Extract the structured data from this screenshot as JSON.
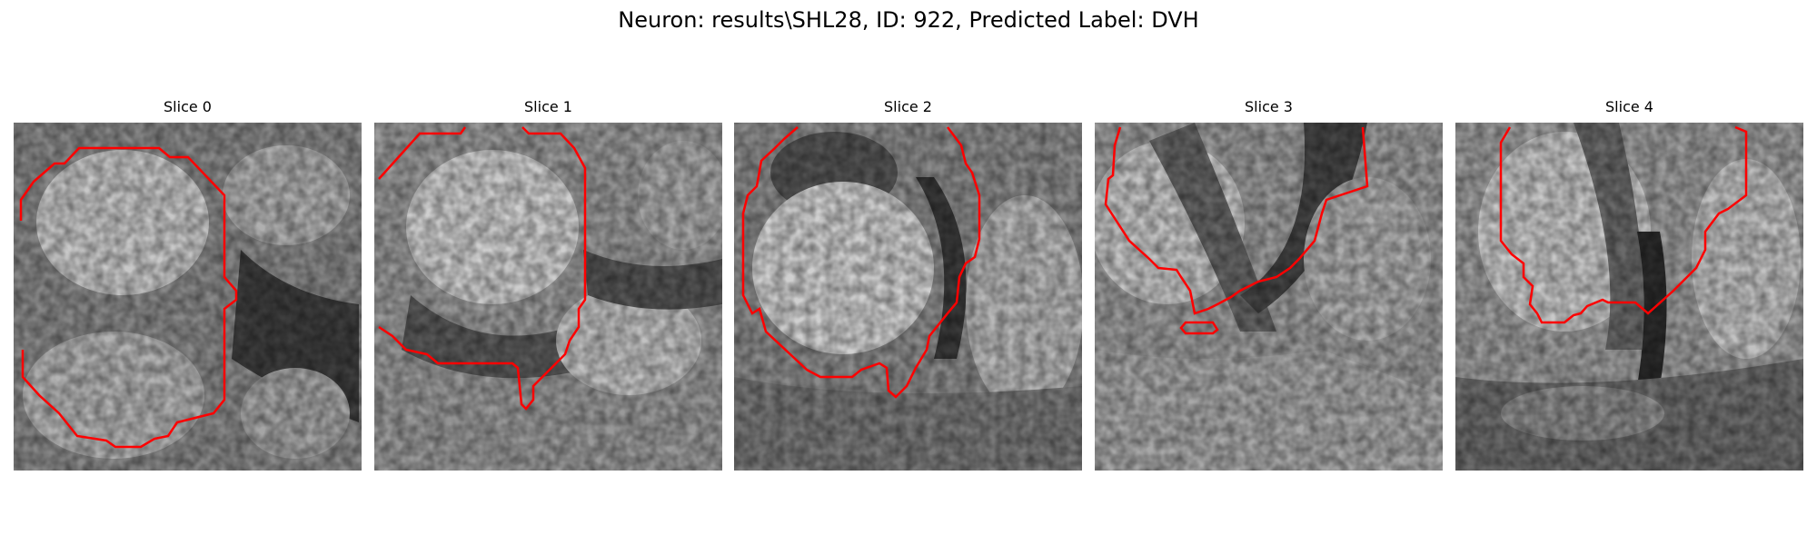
{
  "figure": {
    "title": "Neuron: results\\SHL28, ID: 922, Predicted Label: DVH",
    "contour_color": "#ff0000"
  },
  "slices": [
    {
      "title": "Slice 0"
    },
    {
      "title": "Slice 1"
    },
    {
      "title": "Slice 2"
    },
    {
      "title": "Slice 3"
    },
    {
      "title": "Slice 4"
    }
  ]
}
